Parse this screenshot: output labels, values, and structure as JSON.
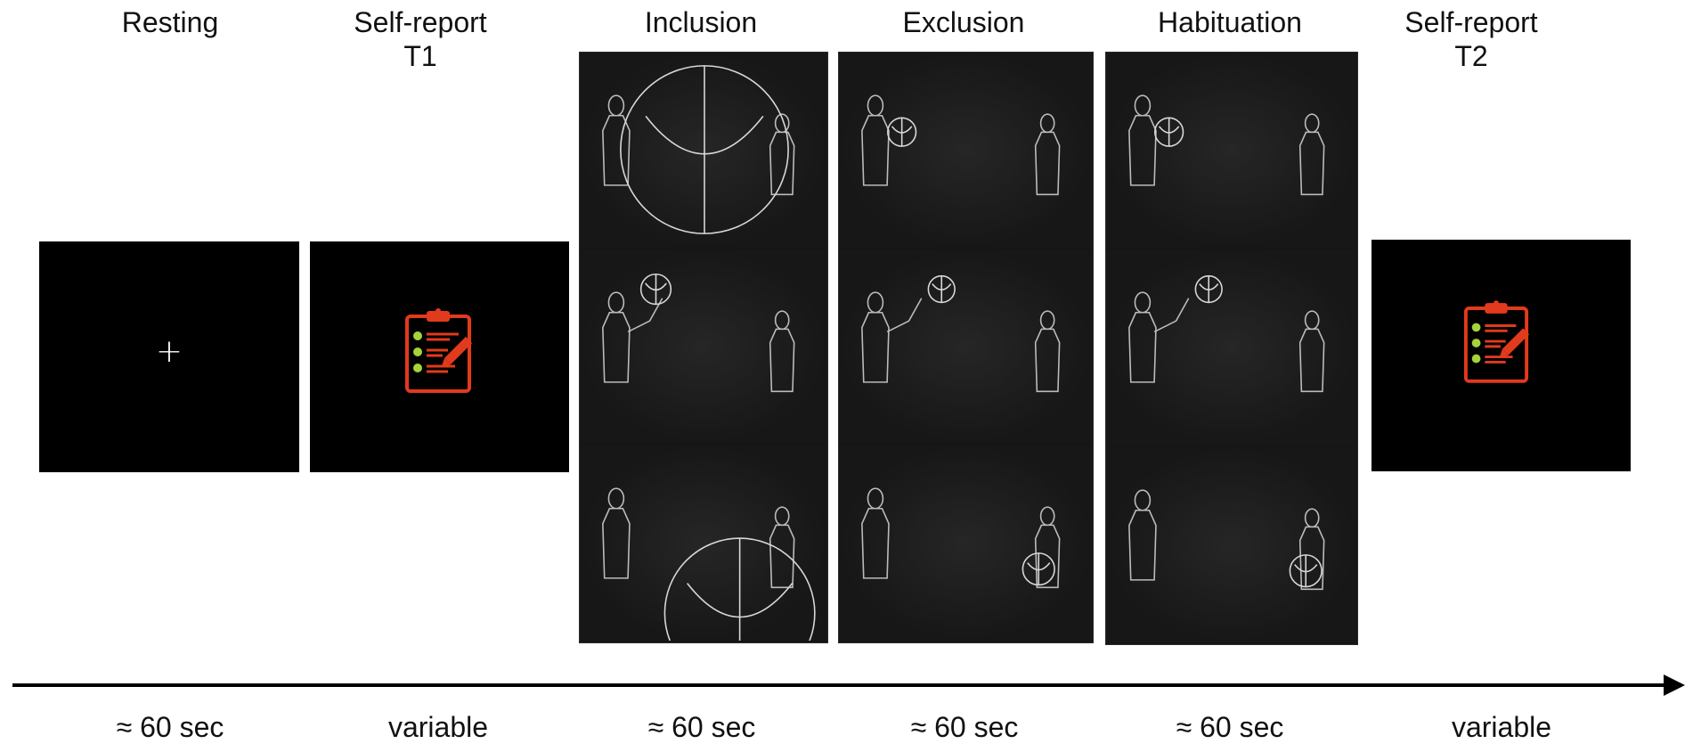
{
  "phases": [
    {
      "label_line1": "Resting",
      "label_line2": "",
      "duration": "≈ 60 sec"
    },
    {
      "label_line1": "Self-report",
      "label_line2": "T1",
      "duration": "variable"
    },
    {
      "label_line1": "Inclusion",
      "label_line2": "",
      "duration": "≈ 60 sec"
    },
    {
      "label_line1": "Exclusion",
      "label_line2": "",
      "duration": "≈ 60 sec"
    },
    {
      "label_line1": "Habituation",
      "label_line2": "",
      "duration": "≈ 60 sec"
    },
    {
      "label_line1": "Self-report",
      "label_line2": "T2",
      "duration": "variable"
    }
  ],
  "fixation_symbol": "+",
  "colors": {
    "background": "#ffffff",
    "panel": "#000000",
    "clipboard": "#e23a1c",
    "check": "#a6d23a",
    "sketch": "#d8d8d8"
  },
  "icons": [
    "fixation-cross-icon",
    "clipboard-checklist-icon",
    "pencil-icon"
  ]
}
